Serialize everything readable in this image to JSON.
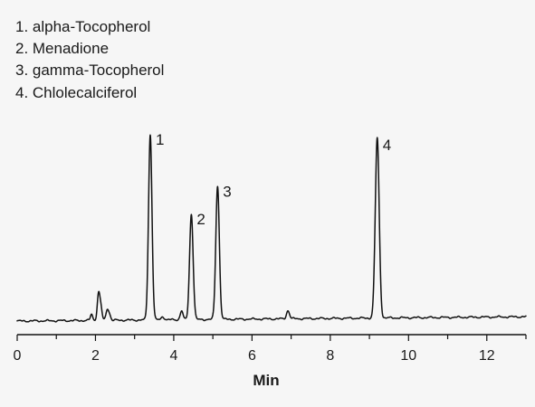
{
  "chart_data": {
    "type": "line",
    "legend": [
      "1. alpha-Tocopherol",
      "2. Menadione",
      "3. gamma-Tocopherol",
      "4. Chlolecalciferol"
    ],
    "peaks": [
      {
        "label": "1",
        "x": 3.4,
        "height": 100
      },
      {
        "label": "2",
        "x": 4.45,
        "height": 57
      },
      {
        "label": "3",
        "x": 5.12,
        "height": 72
      },
      {
        "label": "4",
        "x": 9.2,
        "height": 97
      }
    ],
    "minor_peaks": [
      {
        "x": 1.9,
        "height": 3.2,
        "width": 0.03
      },
      {
        "x": 2.08,
        "height": 14.5,
        "width": 0.034
      },
      {
        "x": 2.14,
        "height": 6,
        "width": 0.03
      },
      {
        "x": 2.3,
        "height": 5.8,
        "width": 0.032
      },
      {
        "x": 2.36,
        "height": 3,
        "width": 0.03
      },
      {
        "x": 3.72,
        "height": 1.7,
        "width": 0.04
      },
      {
        "x": 4.2,
        "height": 4.8,
        "width": 0.035
      },
      {
        "x": 6.92,
        "height": 4.5,
        "width": 0.038
      }
    ],
    "xlabel": "Min",
    "xticks": [
      0,
      2,
      4,
      6,
      8,
      10,
      12
    ],
    "xlim": [
      0,
      13
    ],
    "ylim": [
      0,
      100
    ],
    "line_color": "#111111",
    "grid": false
  }
}
